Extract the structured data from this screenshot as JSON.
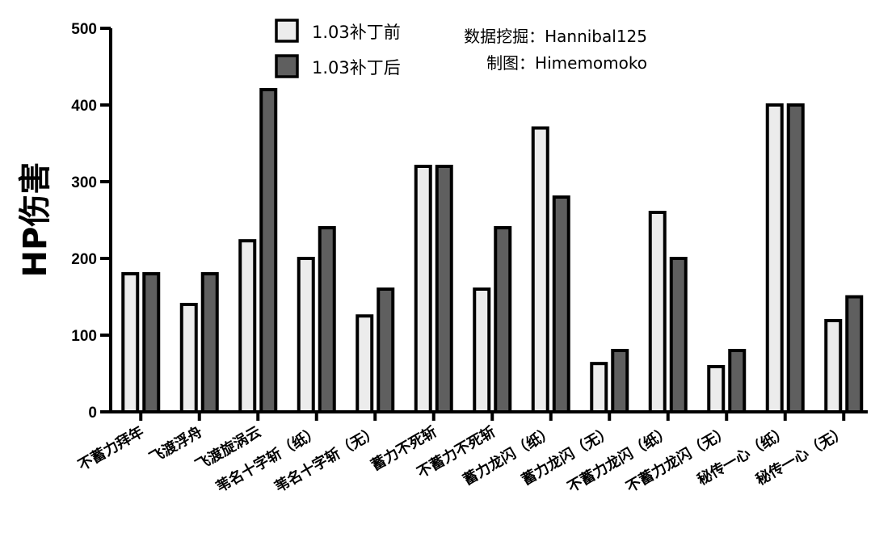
{
  "chart_data": {
    "type": "bar",
    "title": "",
    "xlabel": "",
    "ylabel": "HP伤害",
    "ylim": [
      0,
      500
    ],
    "yticks": [
      0,
      100,
      200,
      300,
      400,
      500
    ],
    "grid": false,
    "legend_position": "top",
    "categories": [
      "不蓄力拜年",
      "飞渡浮舟",
      "飞渡旋涡云",
      "苇名十字斩（纸）",
      "苇名十字斩（无）",
      "蓄力不死斩",
      "不蓄力不死斩",
      "蓄力龙闪（纸）",
      "蓄力龙闪（无）",
      "不蓄力龙闪（纸）",
      "不蓄力龙闪（无）",
      "秘传一心（纸）",
      "秘传一心（无）"
    ],
    "series": [
      {
        "name": "1.03补丁前",
        "color": "#ececec",
        "values": [
          180,
          140,
          223,
          200,
          125,
          320,
          160,
          370,
          63,
          260,
          59,
          400,
          119
        ]
      },
      {
        "name": "1.03补丁后",
        "color": "#5f5f5f",
        "values": [
          180,
          180,
          420,
          240,
          160,
          320,
          240,
          280,
          80,
          200,
          80,
          400,
          150
        ]
      }
    ],
    "annotations": [
      "数据挖掘：Hannibal125",
      "制图：Himemomoko"
    ]
  }
}
